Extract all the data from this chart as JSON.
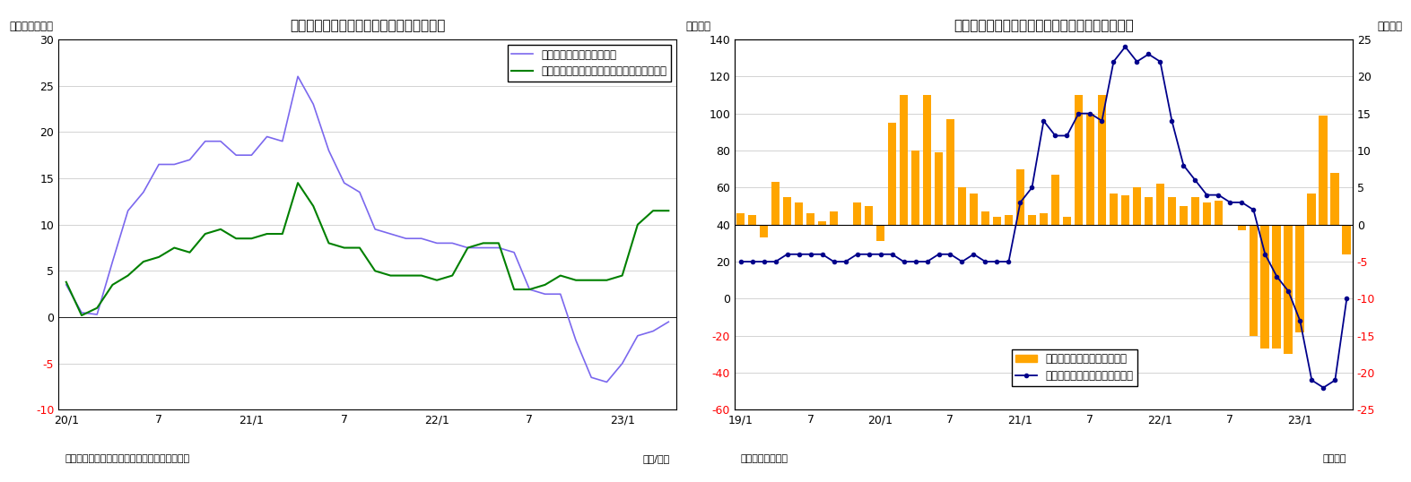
{
  "chart1": {
    "title": "（図表８）マネタリーベース残高の伸び率",
    "ylabel": "（前年比：％）",
    "xlabel_note": "（年/月）",
    "source": "（資料）日本銀行よりニッセイ基礎研究所作成",
    "ylim": [
      -10,
      30
    ],
    "yticks": [
      -10,
      -5,
      0,
      5,
      10,
      15,
      20,
      25,
      30
    ],
    "xtick_labels": [
      "20/1",
      "7",
      "21/1",
      "7",
      "22/1",
      "7",
      "23/1"
    ],
    "line1_label": "マネタリーベース（末残）",
    "line1_color": "#7B68EE",
    "line2_label": "マネタリーベース（除くコロナオペ・末残）",
    "line2_color": "#008000",
    "line1_x": [
      0,
      1,
      2,
      3,
      4,
      5,
      6,
      7,
      8,
      9,
      10,
      11,
      12,
      13,
      14,
      15,
      16,
      17,
      18,
      19,
      20,
      21,
      22,
      23,
      24,
      25,
      26,
      27,
      28,
      29,
      30,
      31,
      32,
      33,
      34,
      35,
      36,
      37,
      38,
      39
    ],
    "line1_y": [
      3.5,
      0.5,
      0.3,
      6.0,
      11.5,
      13.5,
      16.5,
      16.5,
      17.0,
      19.0,
      19.0,
      17.5,
      17.5,
      19.5,
      19.0,
      26.0,
      23.0,
      18.0,
      14.5,
      13.5,
      9.5,
      9.0,
      8.5,
      8.5,
      8.0,
      8.0,
      7.5,
      7.5,
      7.5,
      7.0,
      3.0,
      2.5,
      2.5,
      -2.5,
      -6.5,
      -7.0,
      -5.0,
      -2.0,
      -1.5,
      -0.5
    ],
    "line2_x": [
      0,
      1,
      2,
      3,
      4,
      5,
      6,
      7,
      8,
      9,
      10,
      11,
      12,
      13,
      14,
      15,
      16,
      17,
      18,
      19,
      20,
      21,
      22,
      23,
      24,
      25,
      26,
      27,
      28,
      29,
      30,
      31,
      32,
      33,
      34,
      35,
      36,
      37,
      38,
      39
    ],
    "line2_y": [
      3.8,
      0.2,
      1.0,
      3.5,
      4.5,
      6.0,
      6.5,
      7.5,
      7.0,
      9.0,
      9.5,
      8.5,
      8.5,
      9.0,
      9.0,
      14.5,
      12.0,
      8.0,
      7.5,
      7.5,
      5.0,
      4.5,
      4.5,
      4.5,
      4.0,
      4.5,
      7.5,
      8.0,
      8.0,
      3.0,
      3.0,
      3.5,
      4.5,
      4.0,
      4.0,
      4.0,
      4.5,
      10.0,
      11.5,
      11.5
    ],
    "xtick_positions": [
      0,
      6,
      12,
      18,
      24,
      30,
      36
    ]
  },
  "chart2": {
    "title": "（図表９）マネタリーベース残高と前月比の推移",
    "ylabel_left": "（兆円）",
    "ylabel_right": "（兆円）",
    "xlabel_note": "（年月）",
    "source": "（資料）日本銀行",
    "ylim_left": [
      -60,
      140
    ],
    "ylim_right": [
      -25,
      25
    ],
    "yticks_left": [
      -60,
      -40,
      -20,
      0,
      20,
      40,
      60,
      80,
      100,
      120,
      140
    ],
    "yticks_right": [
      -25,
      -20,
      -15,
      -10,
      -5,
      0,
      5,
      10,
      15,
      20,
      25
    ],
    "xtick_labels": [
      "19/1",
      "7",
      "20/1",
      "7",
      "21/1",
      "7",
      "22/1",
      "7",
      "23/1"
    ],
    "xtick_positions": [
      0,
      6,
      12,
      18,
      24,
      30,
      36,
      42,
      48
    ],
    "bar_color": "#FFA500",
    "line_color": "#00008B",
    "bar_label": "季節調整済み前月差（右軸）",
    "line_label": "マネタリーベース末残の前年差",
    "bar_x": [
      0,
      1,
      2,
      3,
      4,
      5,
      6,
      7,
      8,
      9,
      10,
      11,
      12,
      13,
      14,
      15,
      16,
      17,
      18,
      19,
      20,
      21,
      22,
      23,
      24,
      25,
      26,
      27,
      28,
      29,
      30,
      31,
      32,
      33,
      34,
      35,
      36,
      37,
      38,
      39,
      40,
      41,
      42,
      43,
      44,
      45,
      46,
      47,
      48,
      49,
      50,
      51,
      52
    ],
    "bar_y": [
      46,
      45,
      33,
      63,
      55,
      52,
      46,
      42,
      47,
      40,
      52,
      50,
      31,
      95,
      110,
      80,
      110,
      79,
      97,
      60,
      57,
      47,
      44,
      45,
      70,
      45,
      46,
      67,
      44,
      110,
      100,
      110,
      57,
      56,
      60,
      55,
      62,
      55,
      50,
      55,
      52,
      53,
      40,
      37,
      -20,
      -27,
      -27,
      -30,
      -18,
      57,
      99,
      68,
      24
    ],
    "line_x": [
      0,
      1,
      2,
      3,
      4,
      5,
      6,
      7,
      8,
      9,
      10,
      11,
      12,
      13,
      14,
      15,
      16,
      17,
      18,
      19,
      20,
      21,
      22,
      23,
      24,
      25,
      26,
      27,
      28,
      29,
      30,
      31,
      32,
      33,
      34,
      35,
      36,
      37,
      38,
      39,
      40,
      41,
      42,
      43,
      44,
      45,
      46,
      47,
      48,
      49,
      50,
      51,
      52
    ],
    "line_y": [
      -5,
      -5,
      -5,
      -5,
      -4,
      -4,
      -4,
      -4,
      -5,
      -5,
      -4,
      -4,
      -4,
      -4,
      -5,
      -5,
      -5,
      -4,
      -4,
      -5,
      -4,
      -5,
      -5,
      -5,
      3,
      5,
      14,
      12,
      12,
      15,
      15,
      14,
      22,
      24,
      22,
      23,
      22,
      14,
      8,
      6,
      4,
      4,
      3,
      3,
      2,
      -4,
      -7,
      -9,
      -13,
      -21,
      -22,
      -21,
      -10
    ],
    "baseline": 40
  }
}
